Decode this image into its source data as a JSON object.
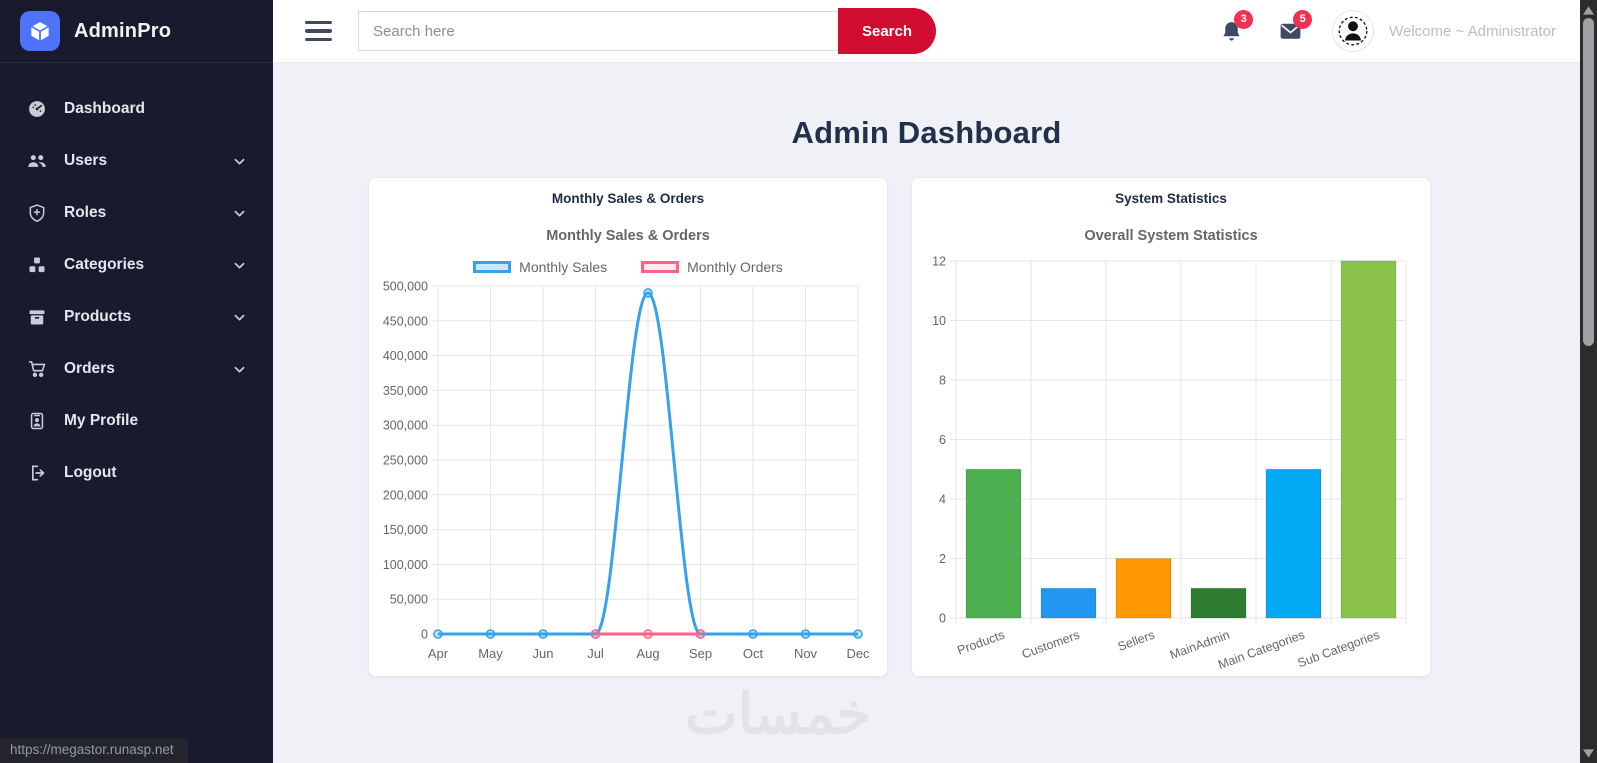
{
  "app": {
    "name": "AdminPro",
    "logo_icon": "cube-icon"
  },
  "sidebar": {
    "items": [
      {
        "label": "Dashboard",
        "icon": "dashboard-icon",
        "chevron": false
      },
      {
        "label": "Users",
        "icon": "users-icon",
        "chevron": true
      },
      {
        "label": "Roles",
        "icon": "shield-icon",
        "chevron": true
      },
      {
        "label": "Categories",
        "icon": "categories-icon",
        "chevron": true
      },
      {
        "label": "Products",
        "icon": "product-box-icon",
        "chevron": true
      },
      {
        "label": "Orders",
        "icon": "cart-icon",
        "chevron": true
      },
      {
        "label": "My Profile",
        "icon": "id-card-icon",
        "chevron": false
      },
      {
        "label": "Logout",
        "icon": "logout-icon",
        "chevron": false
      }
    ]
  },
  "topbar": {
    "search_placeholder": "Search here",
    "search_button": "Search",
    "bell_badge": "3",
    "mail_badge": "5",
    "welcome": "Welcome ~ Administrator"
  },
  "page": {
    "title": "Admin Dashboard",
    "watermark": "خمسات",
    "status_url": "https://megastor.runasp.net"
  },
  "colors": {
    "brand_blue": "#4e73f8",
    "search_button_red": "#d00c31",
    "badge_red": "#ef3152",
    "sidebar_bg": "#1a1a2e"
  },
  "chart_data": [
    {
      "type": "line",
      "card_title": "Monthly Sales & Orders",
      "title": "Monthly Sales & Orders",
      "x": [
        "Apr",
        "May",
        "Jun",
        "Jul",
        "Aug",
        "Sep",
        "Oct",
        "Nov",
        "Dec"
      ],
      "series": [
        {
          "name": "Monthly Sales",
          "color": "#36a2eb",
          "fill": "rgba(54,162,235,0.25)",
          "values": [
            0,
            0,
            0,
            0,
            490000,
            0,
            0,
            0,
            0
          ]
        },
        {
          "name": "Monthly Orders",
          "color": "#ff6384",
          "fill": "rgba(255,99,132,0.12)",
          "values": [
            null,
            null,
            null,
            0,
            0,
            0,
            null,
            null,
            null
          ]
        }
      ],
      "ylim": [
        0,
        500000
      ],
      "ytick_step": 50000,
      "grid": true,
      "legend_position": "top"
    },
    {
      "type": "bar",
      "card_title": "System Statistics",
      "title": "Overall System Statistics",
      "categories": [
        "Products",
        "Customers",
        "Sellers",
        "MainAdmin",
        "Main Categories",
        "Sub Categories"
      ],
      "values": [
        5,
        1,
        2,
        1,
        5,
        12
      ],
      "colors": [
        "#4caf50",
        "#2196f3",
        "#ff9800",
        "#2e7d32",
        "#03a9f4",
        "#8bc34a"
      ],
      "ylim": [
        0,
        12
      ],
      "ytick_step": 2,
      "grid": true,
      "legend_position": "none"
    }
  ]
}
